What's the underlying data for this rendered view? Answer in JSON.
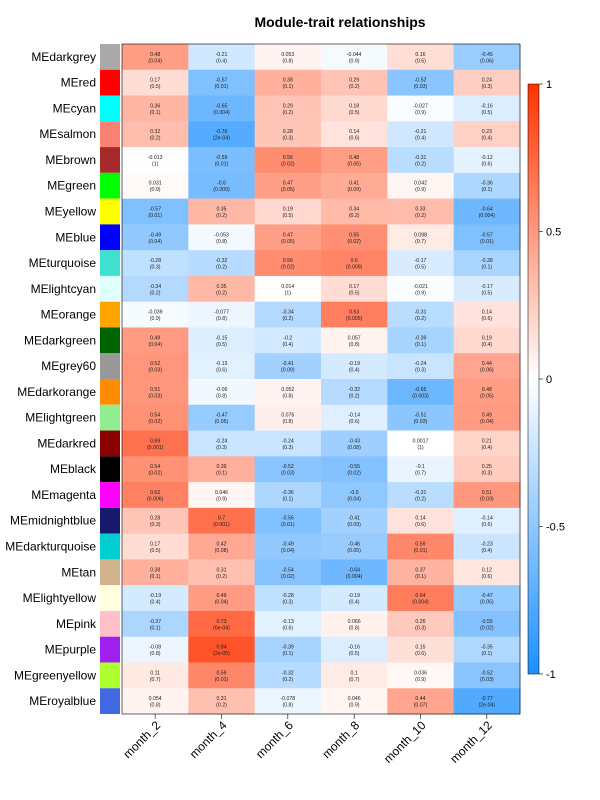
{
  "chart_data": {
    "type": "heatmap",
    "title": "Module-trait relationships",
    "columns": [
      "month_2",
      "month_4",
      "month_6",
      "month_8",
      "month_10",
      "month_12"
    ],
    "rows": [
      {
        "name": "MEdarkgrey",
        "color": "#a9a9a9",
        "r": [
          "0.48",
          "-0.21",
          "0.053",
          "-0.044",
          "0.16",
          "-0.45"
        ],
        "p": [
          "(0.04)",
          "(0.4)",
          "(0.8)",
          "(0.9)",
          "(0.5)",
          "(0.06)"
        ]
      },
      {
        "name": "MEred",
        "color": "#ff0000",
        "r": [
          "0.17",
          "-0.57",
          "0.38",
          "0.29",
          "-0.52",
          "0.24"
        ],
        "p": [
          "(0.5)",
          "(0.01)",
          "(0.1)",
          "(0.2)",
          "(0.03)",
          "(0.3)"
        ]
      },
      {
        "name": "MEcyan",
        "color": "#00ffff",
        "r": [
          "0.36",
          "-0.65",
          "0.29",
          "0.18",
          "-0.027",
          "-0.16"
        ],
        "p": [
          "(0.1)",
          "(0.004)",
          "(0.2)",
          "(0.5)",
          "(0.9)",
          "(0.5)"
        ]
      },
      {
        "name": "MEsalmon",
        "color": "#fa8072",
        "r": [
          "0.32",
          "-0.76",
          "0.28",
          "0.14",
          "-0.21",
          "0.23"
        ],
        "p": [
          "(0.2)",
          "(2e-04)",
          "(0.3)",
          "(0.6)",
          "(0.4)",
          "(0.4)"
        ]
      },
      {
        "name": "MEbrown",
        "color": "#a52a2a",
        "r": [
          "-0.013",
          "-0.59",
          "0.56",
          "0.48",
          "-0.31",
          "-0.12"
        ],
        "p": [
          "(1)",
          "(0.01)",
          "(0.02)",
          "(0.05)",
          "(0.2)",
          "(0.6)"
        ]
      },
      {
        "name": "MEgreen",
        "color": "#00ff00",
        "r": [
          "0.031",
          "-0.6",
          "0.47",
          "0.41",
          "0.042",
          "-0.36"
        ],
        "p": [
          "(0.9)",
          "(0.009)",
          "(0.05)",
          "(0.09)",
          "(0.9)",
          "(0.1)"
        ]
      },
      {
        "name": "MEyellow",
        "color": "#ffff00",
        "r": [
          "-0.57",
          "0.35",
          "0.19",
          "0.34",
          "0.33",
          "-0.64"
        ],
        "p": [
          "(0.01)",
          "(0.2)",
          "(0.5)",
          "(0.2)",
          "(0.2)",
          "(0.004)"
        ]
      },
      {
        "name": "MEblue",
        "color": "#0000ff",
        "r": [
          "-0.49",
          "-0.053",
          "0.47",
          "0.55",
          "0.098",
          "-0.57"
        ],
        "p": [
          "(0.04)",
          "(0.8)",
          "(0.05)",
          "(0.02)",
          "(0.7)",
          "(0.01)"
        ]
      },
      {
        "name": "MEturquoise",
        "color": "#40e0d0",
        "r": [
          "-0.28",
          "-0.32",
          "0.56",
          "0.6",
          "-0.17",
          "-0.38"
        ],
        "p": [
          "(0.3)",
          "(0.2)",
          "(0.02)",
          "(0.009)",
          "(0.5)",
          "(0.1)"
        ]
      },
      {
        "name": "MElightcyan",
        "color": "#e0ffff",
        "r": [
          "-0.34",
          "0.35",
          "0.014",
          "0.17",
          "-0.021",
          "-0.17"
        ],
        "p": [
          "(0.2)",
          "(0.2)",
          "(1)",
          "(0.5)",
          "(0.9)",
          "(0.5)"
        ]
      },
      {
        "name": "MEorange",
        "color": "#ffa500",
        "r": [
          "-0.039",
          "-0.077",
          "-0.34",
          "0.63",
          "-0.31",
          "0.14"
        ],
        "p": [
          "(0.9)",
          "(0.8)",
          "(0.2)",
          "(0.005)",
          "(0.2)",
          "(0.6)"
        ]
      },
      {
        "name": "MEdarkgreen",
        "color": "#006400",
        "r": [
          "0.49",
          "-0.15",
          "-0.2",
          "0.057",
          "-0.39",
          "0.19"
        ],
        "p": [
          "(0.04)",
          "(0.5)",
          "(0.4)",
          "(0.8)",
          "(0.1)",
          "(0.4)"
        ]
      },
      {
        "name": "MEgrey60",
        "color": "#999999",
        "r": [
          "0.52",
          "-0.13",
          "-0.41",
          "-0.19",
          "-0.24",
          "0.44"
        ],
        "p": [
          "(0.03)",
          "(0.6)",
          "(0.09)",
          "(0.4)",
          "(0.3)",
          "(0.06)"
        ]
      },
      {
        "name": "MEdarkorange",
        "color": "#ff8c00",
        "r": [
          "0.51",
          "-0.06",
          "0.052",
          "-0.32",
          "-0.65",
          "0.48"
        ],
        "p": [
          "(0.03)",
          "(0.8)",
          "(0.8)",
          "(0.2)",
          "(0.003)",
          "(0.05)"
        ]
      },
      {
        "name": "MElightgreen",
        "color": "#90ee90",
        "r": [
          "0.54",
          "-0.47",
          "0.076",
          "-0.14",
          "-0.51",
          "0.49"
        ],
        "p": [
          "(0.02)",
          "(0.05)",
          "(0.8)",
          "(0.6)",
          "(0.03)",
          "(0.04)"
        ]
      },
      {
        "name": "MEdarkred",
        "color": "#8b0000",
        "r": [
          "0.69",
          "-0.24",
          "-0.24",
          "-0.43",
          "0.0017",
          "0.21"
        ],
        "p": [
          "(0.001)",
          "(0.3)",
          "(0.3)",
          "(0.08)",
          "(1)",
          "(0.4)"
        ]
      },
      {
        "name": "MEblack",
        "color": "#000000",
        "r": [
          "0.54",
          "0.39",
          "-0.52",
          "-0.55",
          "-0.1",
          "0.25"
        ],
        "p": [
          "(0.02)",
          "(0.1)",
          "(0.03)",
          "(0.02)",
          "(0.7)",
          "(0.3)"
        ]
      },
      {
        "name": "MEmagenta",
        "color": "#ff00ff",
        "r": [
          "0.62",
          "0.046",
          "-0.36",
          "-0.5",
          "-0.31",
          "0.51"
        ],
        "p": [
          "(0.006)",
          "(0.9)",
          "(0.1)",
          "(0.04)",
          "(0.2)",
          "(0.03)"
        ]
      },
      {
        "name": "MEmidnightblue",
        "color": "#191970",
        "r": [
          "0.28",
          "0.7",
          "-0.56",
          "-0.41",
          "0.14",
          "-0.14"
        ],
        "p": [
          "(0.3)",
          "(0.001)",
          "(0.01)",
          "(0.09)",
          "(0.6)",
          "(0.6)"
        ]
      },
      {
        "name": "MEdarkturquoise",
        "color": "#00ced1",
        "r": [
          "0.17",
          "0.42",
          "-0.49",
          "-0.46",
          "0.59",
          "-0.23"
        ],
        "p": [
          "(0.5)",
          "(0.08)",
          "(0.04)",
          "(0.05)",
          "(0.01)",
          "(0.4)"
        ]
      },
      {
        "name": "MEtan",
        "color": "#d2b48c",
        "r": [
          "0.38",
          "0.31",
          "-0.54",
          "-0.64",
          "0.37",
          "0.12"
        ],
        "p": [
          "(0.1)",
          "(0.2)",
          "(0.02)",
          "(0.004)",
          "(0.1)",
          "(0.6)"
        ]
      },
      {
        "name": "MElightyellow",
        "color": "#ffffe0",
        "r": [
          "-0.19",
          "0.49",
          "-0.28",
          "-0.19",
          "0.64",
          "-0.47"
        ],
        "p": [
          "(0.4)",
          "(0.04)",
          "(0.3)",
          "(0.4)",
          "(0.004)",
          "(0.05)"
        ]
      },
      {
        "name": "MEpink",
        "color": "#ffc0cb",
        "r": [
          "-0.37",
          "0.73",
          "-0.13",
          "0.066",
          "0.26",
          "-0.55"
        ],
        "p": [
          "(0.1)",
          "(6e-04)",
          "(0.6)",
          "(0.8)",
          "(0.3)",
          "(0.02)"
        ]
      },
      {
        "name": "MEpurple",
        "color": "#a020f0",
        "r": [
          "-0.08",
          "0.84",
          "-0.39",
          "-0.16",
          "0.15",
          "-0.35"
        ],
        "p": [
          "(0.8)",
          "(2e-05)",
          "(0.1)",
          "(0.5)",
          "(0.6)",
          "(0.1)"
        ]
      },
      {
        "name": "MEgreenyellow",
        "color": "#adff2f",
        "r": [
          "0.11",
          "0.59",
          "-0.32",
          "0.1",
          "0.036",
          "-0.52"
        ],
        "p": [
          "(0.7)",
          "(0.01)",
          "(0.2)",
          "(0.7)",
          "(0.9)",
          "(0.03)"
        ]
      },
      {
        "name": "MEroyalblue",
        "color": "#4169e1",
        "r": [
          "0.054",
          "0.31",
          "-0.078",
          "0.046",
          "0.44",
          "-0.77"
        ],
        "p": [
          "(0.8)",
          "(0.2)",
          "(0.8)",
          "(0.9)",
          "(0.07)",
          "(2e-04)"
        ]
      }
    ],
    "colorbar": {
      "ticks": [
        {
          "value": 1,
          "label": "1"
        },
        {
          "value": 0.5,
          "label": "0.5"
        },
        {
          "value": 0,
          "label": "0"
        },
        {
          "value": -0.5,
          "label": "-0.5"
        },
        {
          "value": -1,
          "label": "-1"
        }
      ],
      "low_color": "#1e90ff",
      "mid_color": "#ffffff",
      "high_color": "#ff3300"
    }
  }
}
